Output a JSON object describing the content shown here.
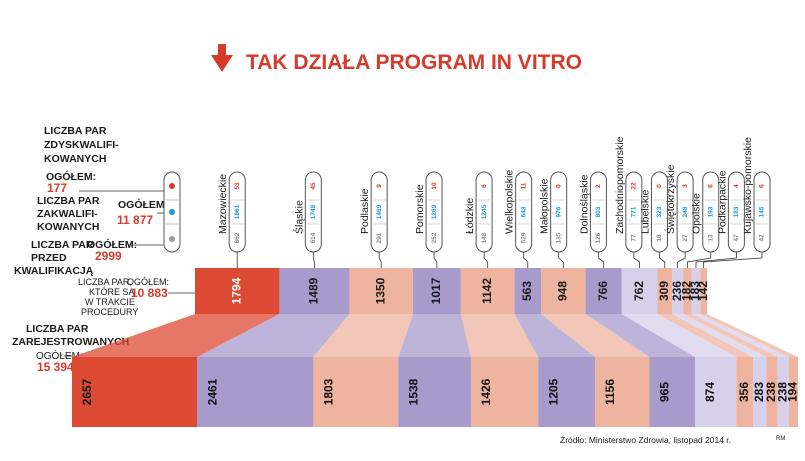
{
  "title": "TAK DZIAŁA PROGRAM IN VITRO",
  "source": "Źródło: Ministerstwo Zdrowia, listopad 2014 r.",
  "credit": "RM",
  "legend": {
    "qualified": {
      "lines": [
        "LICZBA PAR",
        "ZDYSKWALIFI-",
        "KOWANYCH"
      ],
      "total_label": "OGÓŁEM:",
      "total": "177"
    },
    "qualified_in": {
      "lines": [
        "LICZBA PAR",
        "ZAKWALIFI-",
        "KOWANYCH"
      ],
      "total_label": "OGÓŁEM:",
      "total": "11 877"
    },
    "before": {
      "lines": [
        "LICZBA PAR",
        "PRZED",
        "KWALIFIKACJĄ"
      ],
      "total_label": "OGÓŁEM:",
      "total": "2999"
    },
    "in_procedure": {
      "lines": [
        "LICZBA PAR,",
        "KTÓRE SĄ",
        "W TRAKCIE",
        "PROCEDURY"
      ],
      "total_label": "OGÓŁEM:",
      "total": "10 883"
    },
    "registered": {
      "lines": [
        "LICZBA PAR",
        "ZAREJESTROWANYCH"
      ],
      "total_label": "OGÓŁEM:",
      "total": "15 394"
    }
  },
  "colors": {
    "red": "#dd4a33",
    "purple": "#a89acb",
    "salmon": "#eeb49f",
    "lavender": "#d7d0ea",
    "accent": "#d63a2a",
    "blue": "#1a9ad6",
    "grey": "#8a8a8a"
  },
  "chart_data": {
    "type": "table",
    "regions": [
      {
        "name": "Mazowieckie",
        "disqualified": 53,
        "qualified": 1861,
        "before": 662,
        "in_procedure": 1794,
        "registered": 2657
      },
      {
        "name": "Śląskie",
        "disqualified": 45,
        "qualified": 1748,
        "before": 614,
        "in_procedure": 1489,
        "registered": 2461
      },
      {
        "name": "Podlaskie",
        "disqualified": 9,
        "qualified": 1469,
        "before": 291,
        "in_procedure": 1350,
        "registered": 1803
      },
      {
        "name": "Pomorskie",
        "disqualified": 10,
        "qualified": 1269,
        "before": 252,
        "in_procedure": 1017,
        "registered": 1538
      },
      {
        "name": "Łódzkie",
        "disqualified": 6,
        "qualified": 1245,
        "before": 148,
        "in_procedure": 1142,
        "registered": 1426
      },
      {
        "name": "Wielkopolskie",
        "disqualified": 11,
        "qualified": 643,
        "before": 529,
        "in_procedure": 563,
        "registered": 1205
      },
      {
        "name": "Małopolskie",
        "disqualified": 0,
        "qualified": 976,
        "before": 135,
        "in_procedure": 948,
        "registered": 1156
      },
      {
        "name": "Dolnośląskie",
        "disqualified": 2,
        "qualified": 803,
        "before": 126,
        "in_procedure": 766,
        "registered": 965
      },
      {
        "name": "Zachodniopomorskie",
        "disqualified": 22,
        "qualified": 771,
        "before": 77,
        "in_procedure": 762,
        "registered": 874
      },
      {
        "name": "Lubelskie",
        "disqualified": 0,
        "qualified": 323,
        "before": 18,
        "in_procedure": 309,
        "registered": 356
      },
      {
        "name": "Świętokrzyskie",
        "disqualified": 3,
        "qualified": 248,
        "before": 27,
        "in_procedure": 236,
        "registered": 283
      },
      {
        "name": "Opolskie",
        "disqualified": 6,
        "qualified": 193,
        "before": 13,
        "in_procedure": 182,
        "registered": 238
      },
      {
        "name": "Podkarpackie",
        "disqualified": 4,
        "qualified": 183,
        "before": 47,
        "in_procedure": 183,
        "registered": 238
      },
      {
        "name": "Kujawsko-pomorskie",
        "disqualified": 6,
        "qualified": 145,
        "before": 42,
        "in_procedure": 142,
        "registered": 194
      }
    ],
    "color_cycle": [
      "red",
      "purple",
      "salmon",
      "purple",
      "salmon",
      "purple",
      "salmon",
      "purple",
      "lavender",
      "salmon",
      "lavender",
      "salmon",
      "lavender",
      "salmon"
    ]
  }
}
